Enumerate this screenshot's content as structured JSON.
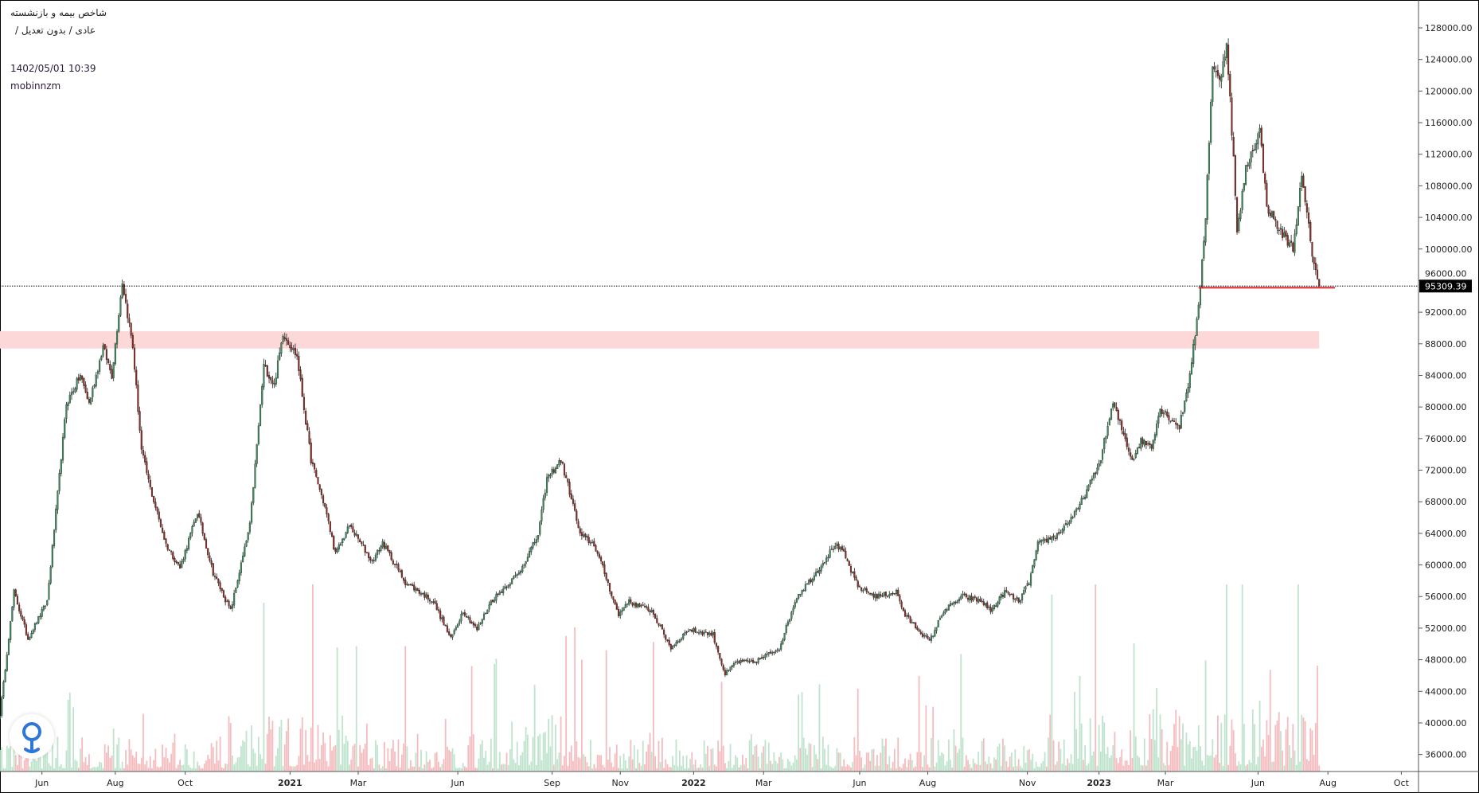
{
  "header": {
    "symbol_title": "شاخص بیمه و بازنشسته",
    "subtitle": "عادی / بدون تعدیل /",
    "datetime": "1402/05/01 10:39",
    "author": "mobinnzm"
  },
  "colors": {
    "up": "#3c8a5c",
    "down": "#8b2a22",
    "wick": "#222222",
    "vol_up": "#bfe3cd",
    "vol_down": "#f5bcbf",
    "zone": "#fdd8d8",
    "support_line": "#e0262a",
    "logo_blue": "#2d78d6"
  },
  "chart_data": {
    "type": "candlestick",
    "title": "شاخص بیمه و بازنشسته",
    "ylim": [
      35000,
      131500
    ],
    "y_ticks": [
      128000,
      124000,
      120000,
      116000,
      112000,
      108000,
      104000,
      100000,
      96000,
      92000,
      88000,
      84000,
      80000,
      76000,
      72000,
      68000,
      64000,
      60000,
      56000,
      52000,
      48000,
      44000,
      40000,
      36000
    ],
    "y_tick_labels": [
      "128000.00",
      "124000.00",
      "120000.00",
      "116000.00",
      "112000.00",
      "108000.00",
      "104000.00",
      "100000.00",
      "96000.00",
      "92000.00",
      "88000.00",
      "84000.00",
      "80000.00",
      "76000.00",
      "72000.00",
      "68000.00",
      "64000.00",
      "60000.00",
      "56000.00",
      "52000.00",
      "48000.00",
      "44000.00",
      "40000.00",
      "36000.00"
    ],
    "x_ticks": [
      {
        "label": "Jun",
        "bar": 24,
        "bold": false
      },
      {
        "label": "Aug",
        "bar": 66,
        "bold": false
      },
      {
        "label": "Oct",
        "bar": 106,
        "bold": false
      },
      {
        "label": "2021",
        "bar": 166,
        "bold": true
      },
      {
        "label": "Mar",
        "bar": 205,
        "bold": false
      },
      {
        "label": "Jun",
        "bar": 262,
        "bold": false
      },
      {
        "label": "Sep",
        "bar": 316,
        "bold": false
      },
      {
        "label": "Nov",
        "bar": 355,
        "bold": false
      },
      {
        "label": "2022",
        "bar": 397,
        "bold": true
      },
      {
        "label": "Mar",
        "bar": 437,
        "bold": false
      },
      {
        "label": "Jun",
        "bar": 492,
        "bold": false
      },
      {
        "label": "Aug",
        "bar": 531,
        "bold": false
      },
      {
        "label": "Nov",
        "bar": 588,
        "bold": false
      },
      {
        "label": "2023",
        "bar": 629,
        "bold": true
      },
      {
        "label": "Mar",
        "bar": 667,
        "bold": false
      },
      {
        "label": "Jun",
        "bar": 720,
        "bold": false
      },
      {
        "label": "Aug",
        "bar": 760,
        "bold": false
      },
      {
        "label": "Oct",
        "bar": 802,
        "bold": false
      }
    ],
    "close_anchors": [
      [
        0,
        41100
      ],
      [
        8,
        56600
      ],
      [
        16,
        50650
      ],
      [
        27,
        55400
      ],
      [
        38,
        80450
      ],
      [
        46,
        84000
      ],
      [
        51,
        80450
      ],
      [
        59,
        87600
      ],
      [
        64,
        84000
      ],
      [
        70,
        95900
      ],
      [
        76,
        87600
      ],
      [
        81,
        74500
      ],
      [
        86,
        69700
      ],
      [
        95,
        62600
      ],
      [
        103,
        59600
      ],
      [
        113,
        66700
      ],
      [
        122,
        59000
      ],
      [
        132,
        54200
      ],
      [
        143,
        65000
      ],
      [
        151,
        85200
      ],
      [
        157,
        82800
      ],
      [
        162,
        89400
      ],
      [
        170,
        86400
      ],
      [
        178,
        73300
      ],
      [
        186,
        67300
      ],
      [
        192,
        61400
      ],
      [
        200,
        65000
      ],
      [
        213,
        60400
      ],
      [
        219,
        62800
      ],
      [
        232,
        57800
      ],
      [
        248,
        55400
      ],
      [
        258,
        50650
      ],
      [
        265,
        54200
      ],
      [
        273,
        51800
      ],
      [
        281,
        55400
      ],
      [
        297,
        59000
      ],
      [
        308,
        63800
      ],
      [
        313,
        70900
      ],
      [
        321,
        73300
      ],
      [
        327,
        68500
      ],
      [
        332,
        63800
      ],
      [
        340,
        62600
      ],
      [
        346,
        59000
      ],
      [
        354,
        53600
      ],
      [
        359,
        55400
      ],
      [
        373,
        54200
      ],
      [
        384,
        49500
      ],
      [
        394,
        51800
      ],
      [
        408,
        51200
      ],
      [
        415,
        46100
      ],
      [
        421,
        47700
      ],
      [
        432,
        47700
      ],
      [
        446,
        49500
      ],
      [
        456,
        56000
      ],
      [
        467,
        59000
      ],
      [
        478,
        62600
      ],
      [
        483,
        61400
      ],
      [
        491,
        57200
      ],
      [
        502,
        56000
      ],
      [
        513,
        56600
      ],
      [
        518,
        53600
      ],
      [
        532,
        50300
      ],
      [
        540,
        54200
      ],
      [
        551,
        56000
      ],
      [
        562,
        55400
      ],
      [
        567,
        54200
      ],
      [
        575,
        56600
      ],
      [
        583,
        55400
      ],
      [
        589,
        57800
      ],
      [
        594,
        62600
      ],
      [
        605,
        63800
      ],
      [
        616,
        66700
      ],
      [
        629,
        72700
      ],
      [
        637,
        80450
      ],
      [
        648,
        73300
      ],
      [
        653,
        75700
      ],
      [
        659,
        75100
      ],
      [
        664,
        79800
      ],
      [
        675,
        77500
      ],
      [
        680,
        82800
      ],
      [
        686,
        92400
      ],
      [
        690,
        104300
      ],
      [
        694,
        123400
      ],
      [
        698,
        121000
      ],
      [
        702,
        126300
      ],
      [
        706,
        111400
      ],
      [
        708,
        101900
      ],
      [
        713,
        110200
      ],
      [
        721,
        115000
      ],
      [
        725,
        105500
      ],
      [
        732,
        102500
      ],
      [
        740,
        100100
      ],
      [
        745,
        109000
      ],
      [
        751,
        99500
      ],
      [
        755,
        95309.39
      ]
    ],
    "last_price": 95309.39,
    "last_price_label": "95309.39",
    "resistance_zone": [
      87400,
      89600
    ],
    "support_level": 95300,
    "support_range_bars": [
      686,
      764
    ],
    "zone_end_bar": 755
  }
}
